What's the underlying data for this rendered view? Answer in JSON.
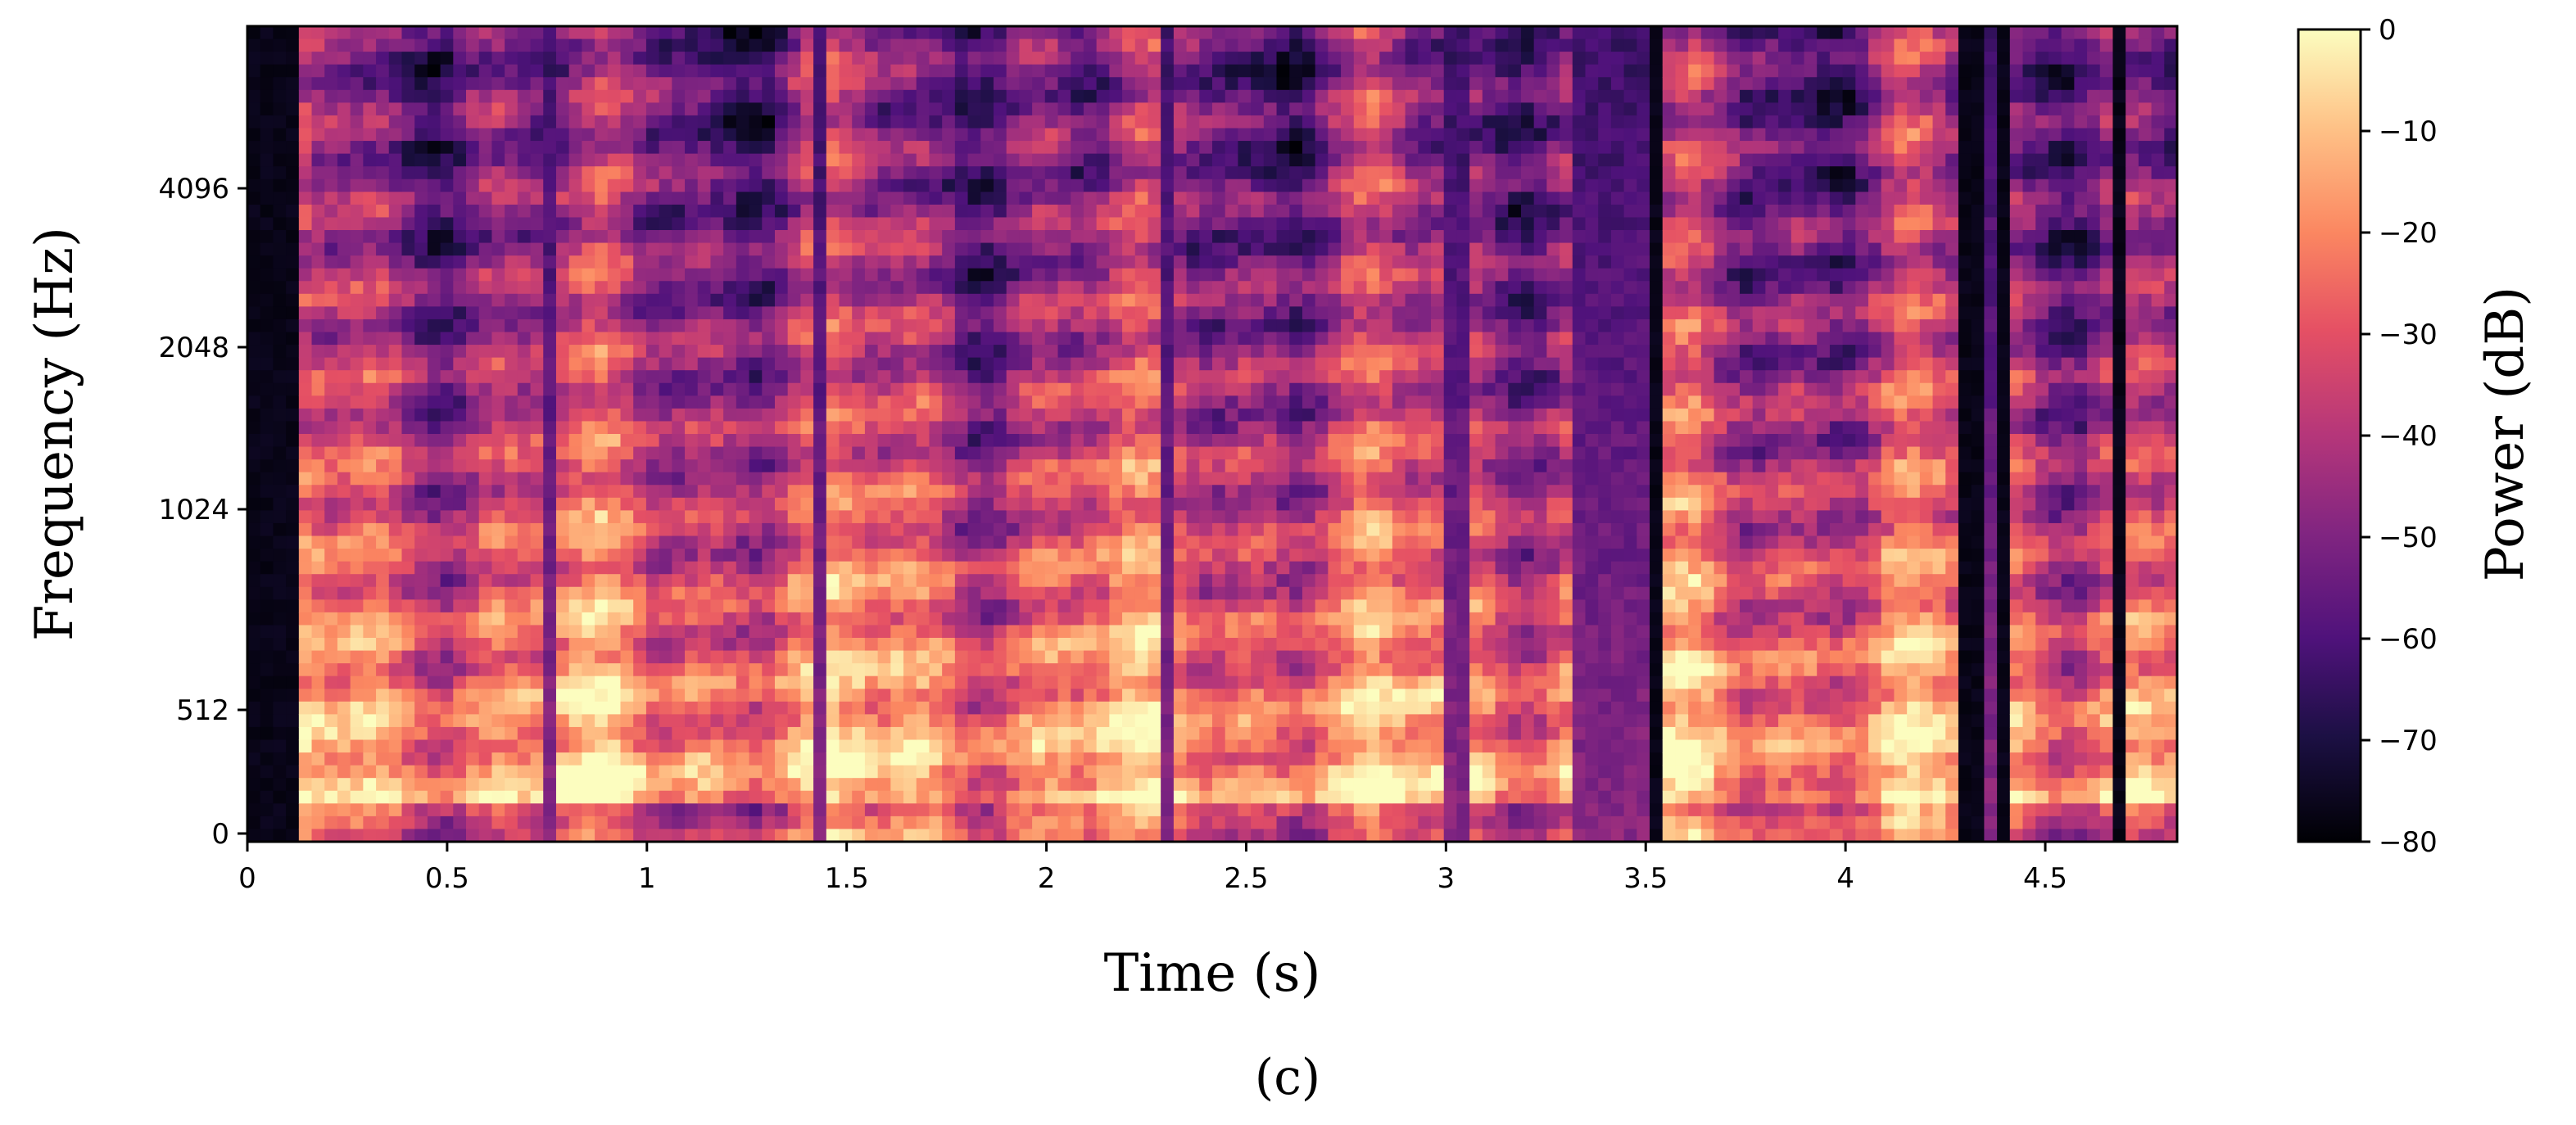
{
  "chart_data": {
    "type": "heatmap",
    "title": "",
    "xlabel": "Time (s)",
    "ylabel": "Frequency (Hz)",
    "x_range": [
      0,
      4.83
    ],
    "y_scale": "log2-like (mel)",
    "x_ticks": [
      {
        "value": 0,
        "label": "0"
      },
      {
        "value": 0.5,
        "label": "0.5"
      },
      {
        "value": 1,
        "label": "1"
      },
      {
        "value": 1.5,
        "label": "1.5"
      },
      {
        "value": 2,
        "label": "2"
      },
      {
        "value": 2.5,
        "label": "2.5"
      },
      {
        "value": 3,
        "label": "3"
      },
      {
        "value": 3.5,
        "label": "3.5"
      },
      {
        "value": 4,
        "label": "4"
      },
      {
        "value": 4.5,
        "label": "4.5"
      }
    ],
    "y_ticks": [
      {
        "value": 0,
        "label": "0"
      },
      {
        "value": 512,
        "label": "512"
      },
      {
        "value": 1024,
        "label": "1024"
      },
      {
        "value": 2048,
        "label": "2048"
      },
      {
        "value": 4096,
        "label": "4096"
      }
    ],
    "colorbar": {
      "label": "Power (dB)",
      "range": [
        -80,
        0
      ],
      "ticks": [
        {
          "value": 0,
          "label": "0"
        },
        {
          "value": -10,
          "label": "−10"
        },
        {
          "value": -20,
          "label": "−20"
        },
        {
          "value": -30,
          "label": "−30"
        },
        {
          "value": -40,
          "label": "−40"
        },
        {
          "value": -50,
          "label": "−50"
        },
        {
          "value": -60,
          "label": "−60"
        },
        {
          "value": -70,
          "label": "−70"
        },
        {
          "value": -80,
          "label": "−80"
        }
      ],
      "colormap": "magma"
    },
    "silent_gaps_s": [
      [
        0,
        0.12
      ],
      [
        3.5,
        3.54
      ],
      [
        4.27,
        4.34
      ],
      [
        4.37,
        4.4
      ],
      [
        4.66,
        4.69
      ]
    ],
    "speech_segments_s": [
      [
        0.12,
        0.75
      ],
      [
        0.78,
        1.42
      ],
      [
        1.45,
        2.3
      ],
      [
        2.33,
        2.62
      ],
      [
        2.62,
        3.0
      ],
      [
        3.05,
        3.33
      ],
      [
        3.54,
        4.05
      ],
      [
        4.05,
        4.27
      ],
      [
        4.4,
        4.66
      ],
      [
        4.69,
        4.83
      ]
    ]
  },
  "caption": "(c)"
}
